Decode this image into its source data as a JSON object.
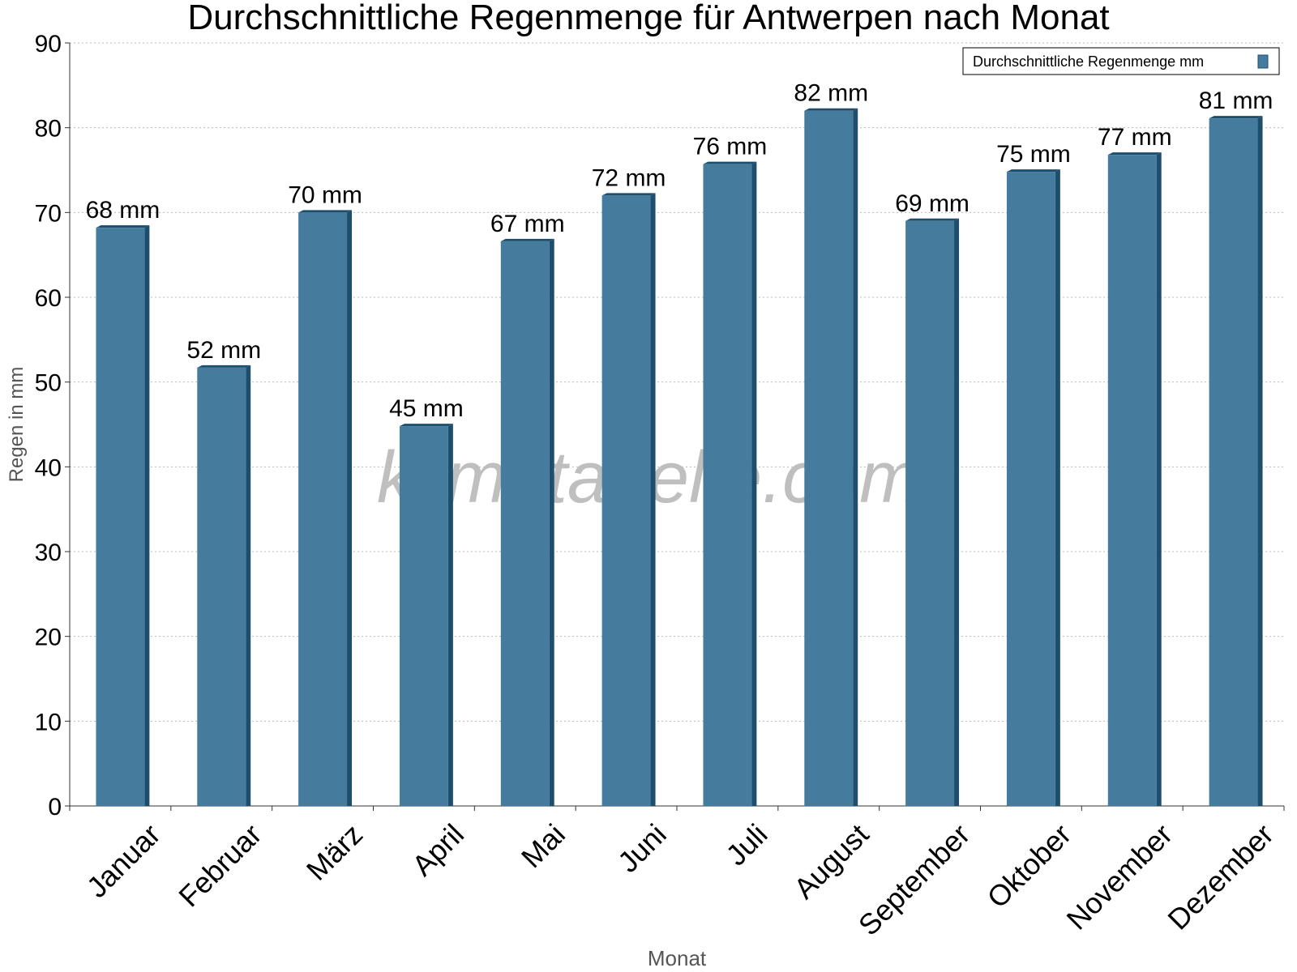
{
  "chart_data": {
    "type": "bar",
    "title": "Durchschnittliche Regenmenge für Antwerpen nach Monat",
    "watermark": "klimatabelle.com",
    "x_label": "Monat",
    "y_label": "Regen in mm",
    "categories": [
      "Januar",
      "Februar",
      "März",
      "April",
      "Mai",
      "Juni",
      "Juli",
      "August",
      "September",
      "Oktober",
      "November",
      "Dezember"
    ],
    "series": [
      {
        "name": "Durchschnittliche Regenmenge mm",
        "color": "#457b9d",
        "values": [
          68.2,
          51.7,
          70,
          44.8,
          66.6,
          72,
          75.7,
          82,
          69,
          74.8,
          76.8,
          81.1
        ],
        "value_labels": [
          "68 mm",
          "52 mm",
          "70 mm",
          "45 mm",
          "67 mm",
          "72 mm",
          "76 mm",
          "82 mm",
          "69 mm",
          "75 mm",
          "77 mm",
          "81 mm"
        ]
      }
    ],
    "ylim": [
      0,
      90
    ],
    "yticks": [
      0,
      10,
      20,
      30,
      40,
      50,
      60,
      70,
      80,
      90
    ],
    "grid": true,
    "legend": "top-right"
  }
}
